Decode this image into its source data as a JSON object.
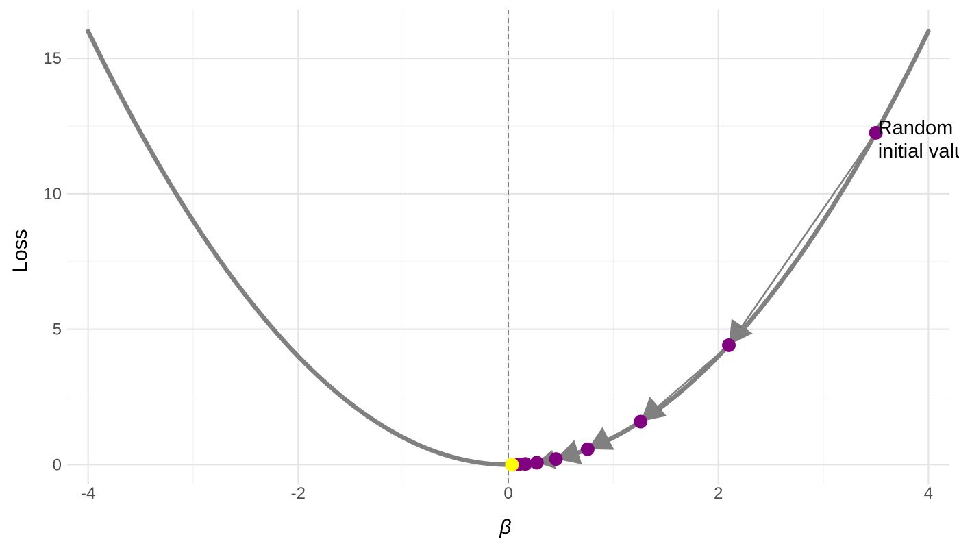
{
  "chart_data": {
    "type": "line",
    "xlabel": "β",
    "ylabel": "Loss",
    "xlim": [
      -4.2,
      4.2
    ],
    "ylim": [
      -0.7,
      16.8
    ],
    "x_ticks": [
      {
        "value": -4,
        "label": "-4"
      },
      {
        "value": -2,
        "label": "-2"
      },
      {
        "value": 0,
        "label": "0"
      },
      {
        "value": 2,
        "label": "2"
      },
      {
        "value": 4,
        "label": "4"
      }
    ],
    "y_ticks": [
      {
        "value": 0,
        "label": "0"
      },
      {
        "value": 5,
        "label": "5"
      },
      {
        "value": 10,
        "label": "10"
      },
      {
        "value": 15,
        "label": "15"
      }
    ],
    "grid": true,
    "curve": {
      "function": "beta^2",
      "x_range": [
        -4,
        4
      ],
      "color": "#808080"
    },
    "vertical_reference_line": {
      "x": 0,
      "style": "dashed",
      "color": "#808080"
    },
    "steps": [
      {
        "beta": 3.5,
        "loss": 12.25,
        "color": "#800080"
      },
      {
        "beta": 2.1,
        "loss": 4.41,
        "color": "#800080"
      },
      {
        "beta": 1.26,
        "loss": 1.5876,
        "color": "#800080"
      },
      {
        "beta": 0.756,
        "loss": 0.5715,
        "color": "#800080"
      },
      {
        "beta": 0.4536,
        "loss": 0.2058,
        "color": "#800080"
      },
      {
        "beta": 0.2722,
        "loss": 0.0741,
        "color": "#800080"
      },
      {
        "beta": 0.1633,
        "loss": 0.0267,
        "color": "#800080"
      },
      {
        "beta": 0.098,
        "loss": 0.0096,
        "color": "#800080"
      },
      {
        "beta": 0.0588,
        "loss": 0.0035,
        "color": "#800080"
      },
      {
        "beta": 0.0353,
        "loss": 0.0012,
        "color": "#FFFF00"
      }
    ],
    "annotations": [
      {
        "lines": [
          "Random",
          "initial valu"
        ],
        "x": 3.52,
        "y": 12.2
      }
    ]
  }
}
